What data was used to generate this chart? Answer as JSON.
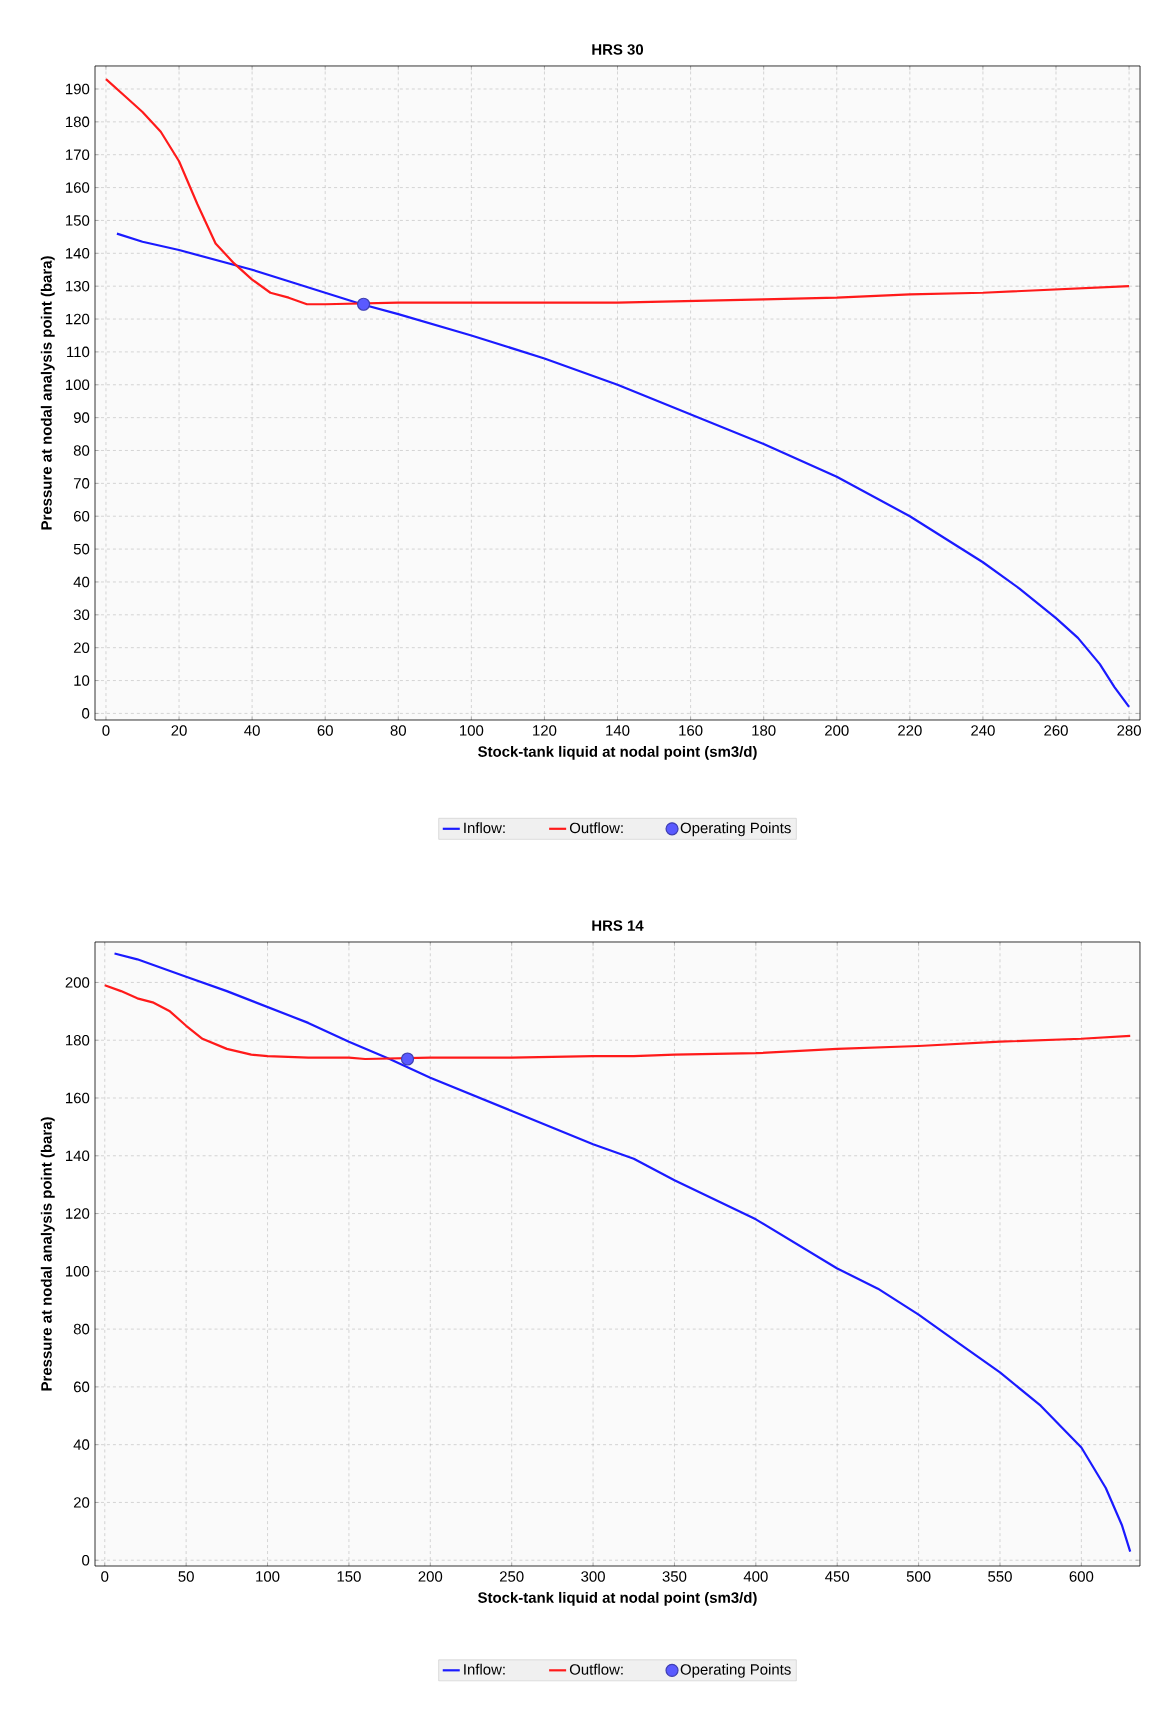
{
  "chart_data": [
    {
      "type": "line",
      "title": "HRS 30",
      "xlabel": "Stock-tank liquid at nodal point (sm3/d)",
      "ylabel": "Pressure at nodal analysis point (bara)",
      "xlim": [
        -3,
        283
      ],
      "ylim": [
        -2,
        197
      ],
      "xticks": [
        0,
        20,
        40,
        60,
        80,
        100,
        120,
        140,
        160,
        180,
        200,
        220,
        240,
        260,
        280
      ],
      "yticks": [
        0,
        10,
        20,
        30,
        40,
        50,
        60,
        70,
        80,
        90,
        100,
        110,
        120,
        130,
        140,
        150,
        160,
        170,
        180,
        190
      ],
      "grid": true,
      "legend": "bottom",
      "series": [
        {
          "name": "Inflow:",
          "type": "line",
          "color": "#1a1aff",
          "x": [
            3,
            10,
            20,
            30,
            40,
            50,
            60,
            70,
            80,
            100,
            120,
            140,
            160,
            180,
            200,
            220,
            240,
            250,
            260,
            266,
            272,
            276,
            280
          ],
          "values": [
            146,
            143.5,
            141,
            138,
            135,
            131.5,
            128,
            124.5,
            121.5,
            115,
            108,
            100,
            91,
            82,
            72,
            60,
            46,
            38,
            29,
            23,
            15,
            8,
            2
          ]
        },
        {
          "name": "Outflow:",
          "type": "line",
          "color": "#ff1a1a",
          "x": [
            0,
            5,
            10,
            15,
            20,
            25,
            30,
            35,
            40,
            45,
            50,
            55,
            60,
            80,
            100,
            140,
            180,
            200,
            220,
            240,
            260,
            280
          ],
          "values": [
            193,
            188,
            183,
            177,
            168,
            155,
            143,
            137,
            132,
            128,
            126.5,
            124.5,
            124.5,
            125,
            125,
            125,
            126,
            126.5,
            127.5,
            128,
            129,
            130
          ]
        },
        {
          "name": "Operating Points",
          "type": "scatter",
          "marker": "circle",
          "color": "#5a5aff",
          "x": [
            70.5
          ],
          "values": [
            124.5
          ]
        }
      ]
    },
    {
      "type": "line",
      "title": "HRS 14",
      "xlabel": "Stock-tank liquid at nodal point (sm3/d)",
      "ylabel": "Pressure at nodal analysis point (bara)",
      "xlim": [
        -6,
        636
      ],
      "ylim": [
        -2,
        214
      ],
      "xticks": [
        0,
        50,
        100,
        150,
        200,
        250,
        300,
        350,
        400,
        450,
        500,
        550,
        600
      ],
      "yticks": [
        0,
        20,
        40,
        60,
        80,
        100,
        120,
        140,
        160,
        180,
        200
      ],
      "grid": true,
      "legend": "bottom",
      "series": [
        {
          "name": "Inflow:",
          "type": "line",
          "color": "#1a1aff",
          "x": [
            6,
            20,
            50,
            75,
            100,
            125,
            150,
            175,
            200,
            250,
            300,
            325,
            350,
            400,
            450,
            475,
            500,
            525,
            550,
            575,
            600,
            615,
            625,
            630
          ],
          "values": [
            210,
            208,
            202,
            197,
            191.5,
            186,
            179.5,
            173.5,
            167,
            155.5,
            144,
            139,
            131.5,
            118,
            101,
            94,
            85,
            75,
            65,
            53.5,
            39,
            25,
            12,
            3
          ]
        },
        {
          "name": "Outflow:",
          "type": "line",
          "color": "#ff1a1a",
          "x": [
            0,
            10,
            20,
            30,
            40,
            50,
            60,
            75,
            90,
            100,
            125,
            150,
            160,
            200,
            250,
            300,
            325,
            350,
            400,
            450,
            500,
            550,
            600,
            630
          ],
          "values": [
            199,
            197,
            194.5,
            193,
            190,
            185,
            180.5,
            177,
            175,
            174.5,
            174,
            174,
            173.5,
            174,
            174,
            174.5,
            174.5,
            175,
            175.5,
            177,
            178,
            179.5,
            180.5,
            181.5
          ]
        },
        {
          "name": "Operating Points",
          "type": "scatter",
          "marker": "circle",
          "color": "#5a5aff",
          "x": [
            186
          ],
          "values": [
            173.5
          ]
        }
      ]
    }
  ]
}
